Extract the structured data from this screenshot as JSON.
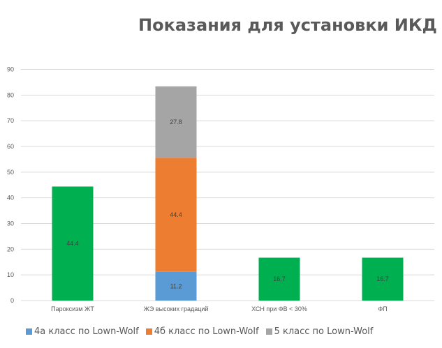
{
  "chart_data": {
    "type": "bar",
    "stacked": true,
    "title": "Показания для установки ИКД",
    "xlabel": "",
    "ylabel": "",
    "ylim": [
      0,
      90
    ],
    "yticks": [
      0,
      10,
      20,
      30,
      40,
      50,
      60,
      70,
      80,
      90
    ],
    "grid": true,
    "legend_position": "bottom",
    "categories": [
      "Пароксизм ЖТ",
      "ЖЭ высоких градаций",
      "ХСН при ФВ < 30%",
      "ФП"
    ],
    "series": [
      {
        "name": "4а класс по Lown-Wolf",
        "color": "#5b9bd5",
        "values": [
          null,
          11.2,
          null,
          null
        ]
      },
      {
        "name": "4б класс по Lown-Wolf",
        "color": "#ed7d31",
        "values": [
          null,
          44.4,
          null,
          null
        ]
      },
      {
        "name": "5 класс по Lown-Wolf",
        "color": "#a5a5a5",
        "values": [
          null,
          27.8,
          null,
          null
        ]
      },
      {
        "name": "",
        "color": "#00b050",
        "values": [
          44.4,
          null,
          16.7,
          16.7
        ]
      }
    ]
  }
}
